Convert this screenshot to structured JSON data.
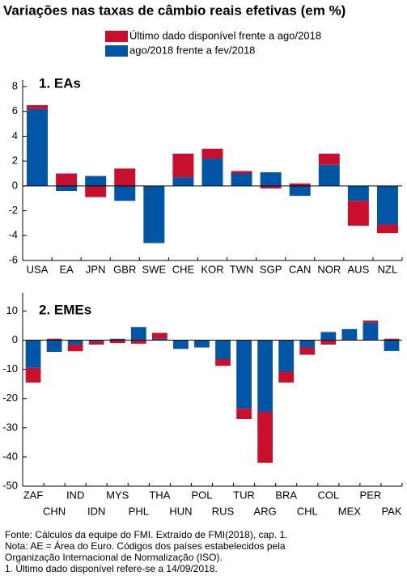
{
  "title": "Variações nas taxas de câmbio reais efetivas (em %)",
  "notes": [
    "Fonte: Cálculos da equipe do FMI. Extraído de FMI(2018), cap. 1.",
    "Nota: AE = Área do Euro. Códigos dos países estabelecidos pela",
    "Organização Internacional de Normalização (ISO).",
    "1. Último dado disponível refere-se a 14/09/2018."
  ],
  "chart_data": [
    {
      "type": "bar",
      "stacked": true,
      "title": "1. EAs",
      "categories": [
        "USA",
        "EA",
        "JPN",
        "GBR",
        "SWE",
        "CHE",
        "KOR",
        "TWN",
        "SGP",
        "CAN",
        "NOR",
        "AUS",
        "NZL"
      ],
      "series": [
        {
          "name": "Último dado disponível frente a ago/2018",
          "color": "#c8102e",
          "values": [
            0.3,
            1.0,
            -0.9,
            1.4,
            0,
            1.9,
            0.8,
            0.2,
            -0.2,
            0.2,
            0.9,
            -2.0,
            -0.7
          ]
        },
        {
          "name": "ago/2018 frente a fev/2018",
          "color": "#0055a5",
          "values": [
            6.2,
            -0.4,
            0.8,
            -1.2,
            -4.6,
            0.7,
            2.2,
            1.0,
            1.1,
            -0.8,
            1.7,
            -1.2,
            -3.1
          ]
        }
      ],
      "ylim": [
        -6,
        8
      ],
      "yticks": [
        -6,
        -4,
        -2,
        0,
        2,
        4,
        6,
        8
      ]
    },
    {
      "type": "bar",
      "stacked": true,
      "title": "2. EMEs",
      "categories": [
        "ZAF",
        "CHN",
        "IND",
        "IDN",
        "MYS",
        "PHL",
        "THA",
        "HUN",
        "POL",
        "RUS",
        "TUR",
        "ARG",
        "BRA",
        "CHL",
        "COL",
        "MEX",
        "PER",
        "PAK"
      ],
      "series": [
        {
          "color": "#c8102e",
          "values": [
            -5,
            0.5,
            -2.3,
            -1.0,
            -1.0,
            -1.2,
            2.0,
            0,
            0,
            -2.3,
            -3.5,
            -17.5,
            -3.7,
            -2.5,
            -1.5,
            0,
            0.7,
            0.5
          ]
        },
        {
          "color": "#0055a5",
          "values": [
            -9.5,
            -4,
            -1.5,
            -0.5,
            0.5,
            4.5,
            0.5,
            -3,
            -2.5,
            -6.5,
            -23.5,
            -24.5,
            -10.8,
            -2.5,
            2.8,
            3.8,
            6,
            -3.7
          ]
        }
      ],
      "ylim": [
        -50,
        14
      ],
      "yticks": [
        -50,
        -40,
        -30,
        -20,
        -10,
        0,
        10
      ]
    }
  ]
}
